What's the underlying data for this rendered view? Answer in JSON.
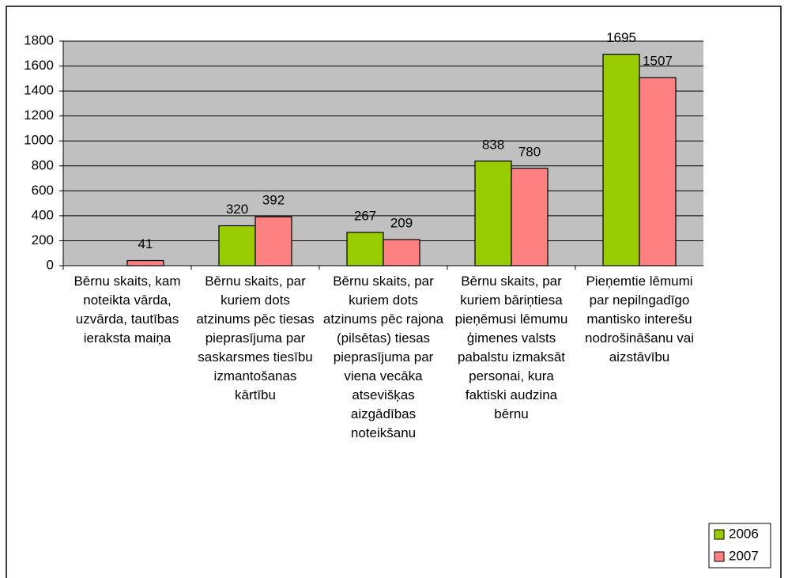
{
  "chart_data": {
    "type": "bar",
    "categories": [
      "Bērnu skaits, kam noteikta vārda, uzvārda, tautības ieraksta maiņa",
      "Bērnu skaits, par kuriem dots atzinums pēc tiesas pieprasījuma par saskarsmes tiesību izmantošanas kārtību",
      "Bērnu skaits, par kuriem dots atzinums pēc rajona (pilsētas) tiesas pieprasījuma par viena vecāka atsevišķas aizgādības noteikšanu",
      "Bērnu skaits, par kuriem bāriņtiesa pieņēmusi lēmumu ģimenes valsts pabalstu izmaksāt personai, kura faktiski audzina bērnu",
      "Pieņemtie lēmumi par nepilngadīgo mantisko interešu nodrošināšanu vai aizstāvību"
    ],
    "series": [
      {
        "name": "2006",
        "color": "#99cc00",
        "values": [
          null,
          320,
          267,
          838,
          1695
        ]
      },
      {
        "name": "2007",
        "color": "#ff8080",
        "values": [
          41,
          392,
          209,
          780,
          1507
        ]
      }
    ],
    "ylim": [
      0,
      1800
    ],
    "yticks": [
      0,
      200,
      400,
      600,
      800,
      1000,
      1200,
      1400,
      1600,
      1800
    ],
    "grid": true,
    "legend": "bottom-right",
    "plot_background": "#c0c0c0"
  }
}
